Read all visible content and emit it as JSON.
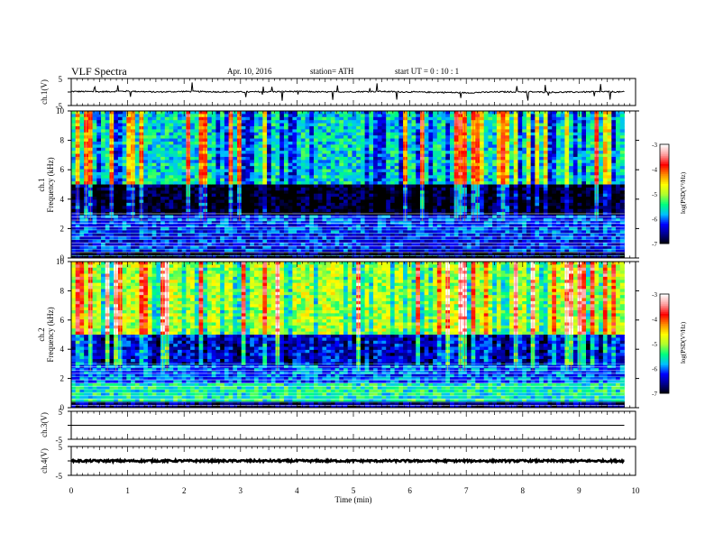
{
  "header": {
    "title": "VLF  Spectra",
    "date": "Apr. 10, 2016",
    "station": "station= ATH",
    "start": "start  UT  =    0 : 10 : 1"
  },
  "chart_data": [
    {
      "type": "line",
      "panel": "ch1-waveform",
      "ylabel": "ch.1(V)",
      "ylim": [
        -5,
        5
      ],
      "yticks": [
        "5",
        "-5"
      ],
      "xlim": [
        0,
        10
      ],
      "x": [
        0,
        0.5,
        1,
        1.5,
        2,
        2.5,
        3,
        3.5,
        4,
        4.5,
        5,
        5.5,
        6,
        6.5,
        7,
        7.5,
        8,
        8.5,
        9,
        9.5,
        9.8
      ],
      "values": [
        0.2,
        0.1,
        0.3,
        0.0,
        0.2,
        0.1,
        0.0,
        0.1,
        0.2,
        0.0,
        0.1,
        0.2,
        0.0,
        -0.1,
        -0.3,
        0.0,
        0.1,
        -0.1,
        0.0,
        0.1,
        0.0
      ],
      "color": "#000000"
    },
    {
      "type": "heatmap",
      "panel": "ch1-spectrogram",
      "ylabel": [
        "ch.1",
        "Frequency  (kHz)"
      ],
      "ylim": [
        0,
        10
      ],
      "yticks": [
        "0",
        "2",
        "4",
        "6",
        "8",
        "10"
      ],
      "xlim": [
        0,
        10
      ],
      "data_end_min": 9.8,
      "colorbar_label": "log(PSD(V²/Hz)",
      "colorbar_range": [
        -7,
        -3
      ],
      "colorbar_ticks": [
        "-3",
        "-4",
        "-5",
        "-6",
        "-7"
      ],
      "colormap": [
        "#000000",
        "#00008b",
        "#0000ff",
        "#00bfff",
        "#00ff7f",
        "#adff2f",
        "#ffff00",
        "#ff8c00",
        "#ff0000",
        "#ff9a9a",
        "#ffffff"
      ],
      "bands": [
        {
          "from_khz": 0.0,
          "to_khz": 0.4,
          "level": -6.8
        },
        {
          "from_khz": 0.4,
          "to_khz": 1.6,
          "level": -6.2
        },
        {
          "from_khz": 1.6,
          "to_khz": 3.0,
          "level": -6.1
        },
        {
          "from_khz": 3.0,
          "to_khz": 5.0,
          "level": -6.9
        },
        {
          "from_khz": 5.0,
          "to_khz": 10.0,
          "level": -5.6
        }
      ]
    },
    {
      "type": "heatmap",
      "panel": "ch2-spectrogram",
      "ylabel": [
        "ch.2",
        "Frequency  (kHz)"
      ],
      "ylim": [
        0,
        10
      ],
      "yticks": [
        "0",
        "2",
        "4",
        "6",
        "8",
        "10"
      ],
      "xlim": [
        0,
        10
      ],
      "data_end_min": 9.8,
      "colorbar_label": "log(PSD(V²/Hz)",
      "colorbar_range": [
        -7,
        -3
      ],
      "colorbar_ticks": [
        "-3",
        "-4",
        "-5",
        "-6",
        "-7"
      ],
      "colormap": [
        "#000000",
        "#00008b",
        "#0000ff",
        "#00bfff",
        "#00ff7f",
        "#adff2f",
        "#ffff00",
        "#ff8c00",
        "#ff0000",
        "#ff9a9a",
        "#ffffff"
      ],
      "bands": [
        {
          "from_khz": 0.0,
          "to_khz": 0.4,
          "level": -6.6
        },
        {
          "from_khz": 0.4,
          "to_khz": 1.6,
          "level": -5.5
        },
        {
          "from_khz": 1.6,
          "to_khz": 3.0,
          "level": -6.0
        },
        {
          "from_khz": 3.0,
          "to_khz": 5.0,
          "level": -6.3
        },
        {
          "from_khz": 5.0,
          "to_khz": 10.0,
          "level": -4.9
        }
      ]
    },
    {
      "type": "line",
      "panel": "ch3-waveform",
      "ylabel": "ch.3(V)",
      "ylim": [
        -5,
        5
      ],
      "yticks": [
        "5",
        "-5"
      ],
      "xlim": [
        0,
        10
      ],
      "x": [
        0,
        9.8
      ],
      "values": [
        0,
        0
      ],
      "color": "#000000"
    },
    {
      "type": "line",
      "panel": "ch4-waveform",
      "ylabel": "ch.4(V)",
      "ylim": [
        -5,
        5
      ],
      "yticks": [
        "5",
        "-5"
      ],
      "xlim": [
        0,
        10
      ],
      "x": [
        0,
        9.8
      ],
      "values": [
        0,
        0
      ],
      "color": "#000000"
    }
  ],
  "xaxis": {
    "label": "Time  (min)",
    "ticks": [
      "0",
      "1",
      "2",
      "3",
      "4",
      "5",
      "6",
      "7",
      "8",
      "9",
      "10"
    ]
  }
}
